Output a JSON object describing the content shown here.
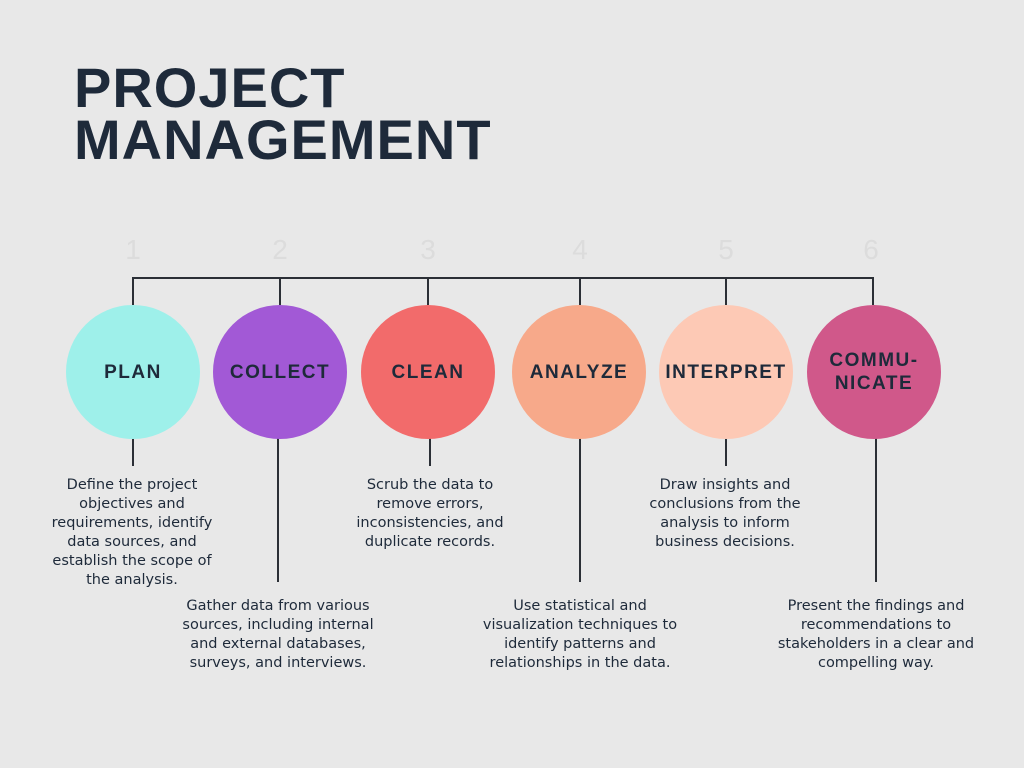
{
  "title": {
    "line1": "PROJECT",
    "line2": "MANAGEMENT"
  },
  "steps": [
    {
      "number": "1",
      "label": "PLAN",
      "color": "#9ef0ea",
      "description": "Define the project objectives and requirements, identify data sources, and establish the scope of the analysis."
    },
    {
      "number": "2",
      "label": "COLLECT",
      "color": "#a259d6",
      "description": "Gather data from various sources, including internal and external databases, surveys, and interviews."
    },
    {
      "number": "3",
      "label": "CLEAN",
      "color": "#f26b6b",
      "description": "Scrub the data to remove errors, inconsistencies, and duplicate records."
    },
    {
      "number": "4",
      "label": "ANALYZE",
      "color": "#f7a98a",
      "description": "Use statistical and visualization techniques to identify patterns and relationships in the data."
    },
    {
      "number": "5",
      "label": "INTERPRET",
      "color": "#fdc9b5",
      "description": "Draw insights and conclusions from the analysis to inform business decisions."
    },
    {
      "number": "6",
      "label": "COMMU-\nNICATE",
      "color": "#d0588a",
      "description": "Present the findings and recommendations to stakeholders in a clear and compelling way."
    }
  ]
}
